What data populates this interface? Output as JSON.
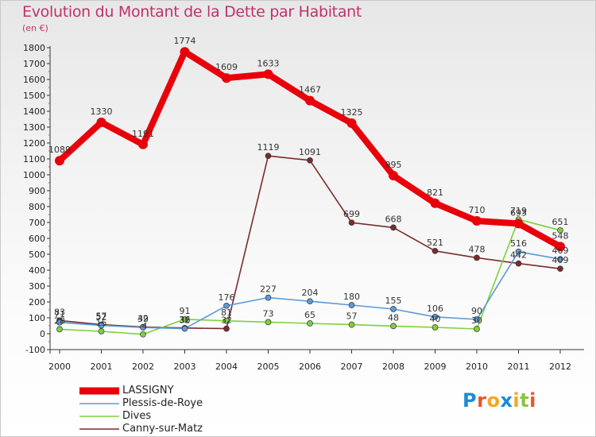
{
  "header": {
    "title": "Evolution du Montant de la Dette par Habitant",
    "unit": "(en €)"
  },
  "brand": {
    "text": "Proxiti",
    "letter_colors": [
      "#1a8bd6",
      "#e8562a",
      "#f5a623",
      "#1a8bd6",
      "#f5a623",
      "#8ac43f",
      "#e8562a"
    ]
  },
  "chart_data": {
    "type": "line",
    "title": "Evolution du Montant de la Dette par Habitant",
    "ylabel": "(en €)",
    "xlabel": "",
    "x": [
      "2000",
      "2001",
      "2002",
      "2003",
      "2004",
      "2005",
      "2006",
      "2007",
      "2008",
      "2009",
      "2010",
      "2011",
      "2012"
    ],
    "ylim": [
      -100,
      1800
    ],
    "yticks": [
      -100,
      0,
      100,
      200,
      300,
      400,
      500,
      600,
      700,
      800,
      900,
      1000,
      1100,
      1200,
      1300,
      1400,
      1500,
      1600,
      1700,
      1800
    ],
    "grid": false,
    "legend_position": "bottom-left",
    "series": [
      {
        "name": "LASSIGNY",
        "color": "#e8000b",
        "values": [
          1089,
          1330,
          1191,
          1774,
          1609,
          1633,
          1467,
          1325,
          995,
          821,
          710,
          693,
          548
        ]
      },
      {
        "name": "Plessis-de-Roye",
        "color": "#5b9bd5",
        "values": [
          71,
          52,
          39,
          32,
          176,
          227,
          204,
          180,
          155,
          106,
          90,
          516,
          469
        ]
      },
      {
        "name": "Dives",
        "color": "#7fd13b",
        "values": [
          28,
          15,
          -4,
          91,
          81,
          73,
          65,
          57,
          48,
          40,
          30,
          719,
          651
        ]
      },
      {
        "name": "Canny-sur-Matz",
        "color": "#7b2c2c",
        "values": [
          83,
          57,
          42,
          36,
          32,
          1119,
          1091,
          699,
          668,
          521,
          478,
          442,
          409
        ]
      }
    ]
  }
}
